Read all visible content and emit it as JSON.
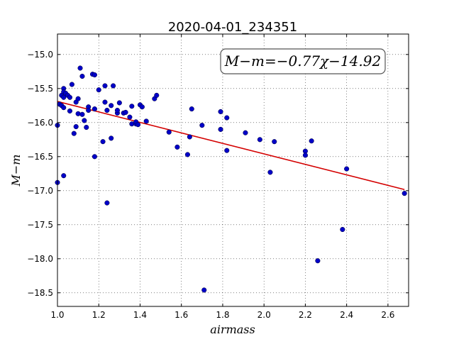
{
  "chart_data": {
    "type": "scatter",
    "title": "2020-04-01_234351",
    "xlabel": "airmass",
    "ylabel": "M−m",
    "xlim": [
      1.0,
      2.7
    ],
    "ylim": [
      -18.7,
      -14.7
    ],
    "y_inverted": true,
    "grid": true,
    "x_ticks": [
      1.0,
      1.2,
      1.4,
      1.6,
      1.8,
      2.0,
      2.2,
      2.4,
      2.6
    ],
    "x_tick_labels": [
      "1.0",
      "1.2",
      "1.4",
      "1.6",
      "1.8",
      "2.0",
      "2.2",
      "2.4",
      "2.6"
    ],
    "y_ticks": [
      -15.0,
      -15.5,
      -16.0,
      -16.5,
      -17.0,
      -17.5,
      -18.0,
      -18.5
    ],
    "y_tick_labels": [
      "−15.0",
      "−15.5",
      "−16.0",
      "−16.5",
      "−17.0",
      "−17.5",
      "−18.0",
      "−18.5"
    ],
    "annotation": "M−m=−0.77χ−14.92",
    "fit_line": {
      "slope": -0.77,
      "intercept": -14.92,
      "x_range": [
        1.0,
        2.68
      ],
      "color": "#d40000"
    },
    "point_color": "#0000c8",
    "points": [
      [
        1.0,
        -16.04
      ],
      [
        1.0,
        -16.88
      ],
      [
        1.01,
        -15.73
      ],
      [
        1.02,
        -15.6
      ],
      [
        1.02,
        -15.75
      ],
      [
        1.03,
        -15.5
      ],
      [
        1.03,
        -15.55
      ],
      [
        1.03,
        -15.63
      ],
      [
        1.03,
        -15.78
      ],
      [
        1.03,
        -16.78
      ],
      [
        1.04,
        -15.57
      ],
      [
        1.05,
        -15.6
      ],
      [
        1.06,
        -15.63
      ],
      [
        1.06,
        -15.83
      ],
      [
        1.07,
        -15.44
      ],
      [
        1.08,
        -16.16
      ],
      [
        1.09,
        -15.7
      ],
      [
        1.09,
        -16.06
      ],
      [
        1.1,
        -15.65
      ],
      [
        1.1,
        -15.87
      ],
      [
        1.11,
        -15.2
      ],
      [
        1.12,
        -15.32
      ],
      [
        1.12,
        -15.88
      ],
      [
        1.13,
        -15.97
      ],
      [
        1.14,
        -16.07
      ],
      [
        1.15,
        -15.77
      ],
      [
        1.15,
        -15.82
      ],
      [
        1.17,
        -15.29
      ],
      [
        1.18,
        -15.3
      ],
      [
        1.18,
        -15.8
      ],
      [
        1.18,
        -16.5
      ],
      [
        1.2,
        -15.52
      ],
      [
        1.22,
        -16.28
      ],
      [
        1.23,
        -15.46
      ],
      [
        1.23,
        -15.7
      ],
      [
        1.24,
        -15.82
      ],
      [
        1.24,
        -17.18
      ],
      [
        1.26,
        -15.75
      ],
      [
        1.26,
        -16.23
      ],
      [
        1.27,
        -15.46
      ],
      [
        1.29,
        -15.86
      ],
      [
        1.29,
        -15.82
      ],
      [
        1.3,
        -15.71
      ],
      [
        1.32,
        -15.86
      ],
      [
        1.33,
        -15.85
      ],
      [
        1.35,
        -15.92
      ],
      [
        1.36,
        -15.76
      ],
      [
        1.36,
        -16.02
      ],
      [
        1.38,
        -16.02
      ],
      [
        1.38,
        -15.99
      ],
      [
        1.39,
        -16.03
      ],
      [
        1.4,
        -15.74
      ],
      [
        1.41,
        -15.77
      ],
      [
        1.43,
        -15.98
      ],
      [
        1.47,
        -15.65
      ],
      [
        1.48,
        -15.6
      ],
      [
        1.54,
        -16.14
      ],
      [
        1.58,
        -16.36
      ],
      [
        1.63,
        -16.47
      ],
      [
        1.64,
        -16.21
      ],
      [
        1.65,
        -15.8
      ],
      [
        1.7,
        -16.04
      ],
      [
        1.71,
        -18.46
      ],
      [
        1.79,
        -15.84
      ],
      [
        1.79,
        -16.1
      ],
      [
        1.82,
        -16.41
      ],
      [
        1.82,
        -15.93
      ],
      [
        1.91,
        -16.15
      ],
      [
        1.98,
        -16.25
      ],
      [
        2.03,
        -16.73
      ],
      [
        2.05,
        -16.28
      ],
      [
        2.2,
        -16.42
      ],
      [
        2.2,
        -16.48
      ],
      [
        2.23,
        -16.27
      ],
      [
        2.26,
        -18.03
      ],
      [
        2.38,
        -17.57
      ],
      [
        2.4,
        -16.68
      ],
      [
        2.68,
        -17.04
      ]
    ]
  }
}
